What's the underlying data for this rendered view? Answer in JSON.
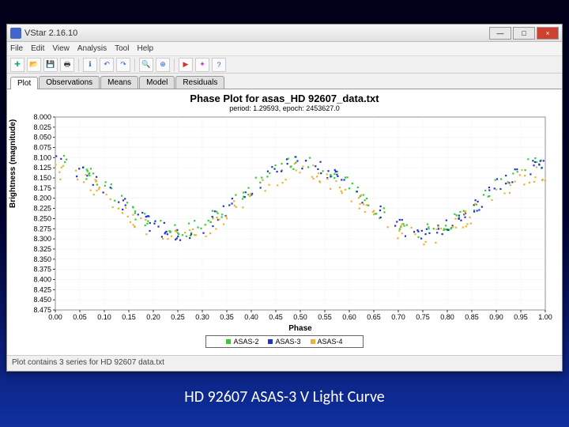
{
  "slide": {
    "caption": "HD 92607 ASAS-3 V Light Curve"
  },
  "window": {
    "title": "VStar 2.16.10",
    "controls": {
      "min": "—",
      "max": "□",
      "close": "×"
    }
  },
  "menubar": [
    "File",
    "Edit",
    "View",
    "Analysis",
    "Tool",
    "Help"
  ],
  "toolbar_icons": [
    {
      "name": "new",
      "glyph": "✚",
      "fg": "#2a8"
    },
    {
      "name": "open",
      "glyph": "📂",
      "fg": "#333"
    },
    {
      "name": "save",
      "glyph": "💾",
      "fg": "#333"
    },
    {
      "name": "print",
      "glyph": "🖶",
      "fg": "#333"
    },
    {
      "name": "info",
      "glyph": "ℹ",
      "fg": "#26c"
    },
    {
      "name": "undo",
      "glyph": "↶",
      "fg": "#26c"
    },
    {
      "name": "redo",
      "glyph": "↷",
      "fg": "#26c"
    },
    {
      "name": "zoom",
      "glyph": "🔍",
      "fg": "#333"
    },
    {
      "name": "target",
      "glyph": "⊕",
      "fg": "#26c"
    },
    {
      "name": "play",
      "glyph": "▶",
      "fg": "#c33"
    },
    {
      "name": "pref",
      "glyph": "✦",
      "fg": "#c3c"
    },
    {
      "name": "help",
      "glyph": "?",
      "fg": "#26c"
    }
  ],
  "tabs": [
    {
      "label": "Plot",
      "active": true
    },
    {
      "label": "Observations",
      "active": false
    },
    {
      "label": "Means",
      "active": false
    },
    {
      "label": "Model",
      "active": false
    },
    {
      "label": "Residuals",
      "active": false
    }
  ],
  "chart": {
    "type": "scatter",
    "title": "Phase Plot for asas_HD 92607_data.txt",
    "subtitle": "period: 1.29593, epoch: 2453627.0",
    "xlabel": "Phase",
    "ylabel": "Brightness (magnitude)",
    "background_color": "#ffffff",
    "grid_color": "#f2f2f2",
    "axis_color": "#000000",
    "tick_font_size": 9,
    "label_font_size": 10,
    "title_font_size": 13,
    "xlim": [
      0.0,
      1.0
    ],
    "ylim": [
      8.475,
      8.0
    ],
    "y_inverted": true,
    "xticks": [
      0.0,
      0.05,
      0.1,
      0.15,
      0.2,
      0.25,
      0.3,
      0.35,
      0.4,
      0.45,
      0.5,
      0.55,
      0.6,
      0.65,
      0.7,
      0.75,
      0.8,
      0.85,
      0.9,
      0.95,
      1.0
    ],
    "yticks": [
      8.0,
      8.025,
      8.05,
      8.075,
      8.1,
      8.125,
      8.15,
      8.175,
      8.2,
      8.225,
      8.25,
      8.275,
      8.3,
      8.325,
      8.35,
      8.375,
      8.4,
      8.425,
      8.45,
      8.475
    ],
    "marker_size": 2.2,
    "series": [
      {
        "name": "ASAS-2",
        "color": "#33cc33",
        "marker": "square",
        "n_points": 140,
        "amplitude": 0.085,
        "mean": 8.195,
        "phase_offset": 0.0,
        "scatter": 0.018
      },
      {
        "name": "ASAS-3",
        "color": "#2233cc",
        "marker": "square",
        "n_points": 140,
        "amplitude": 0.085,
        "mean": 8.2,
        "phase_offset": 0.0,
        "scatter": 0.02
      },
      {
        "name": "ASAS-4",
        "color": "#f0b030",
        "marker": "square",
        "n_points": 140,
        "amplitude": 0.08,
        "mean": 8.215,
        "phase_offset": 0.0,
        "scatter": 0.022
      }
    ],
    "legend": {
      "position": "bottom-center",
      "border_color": "#666666"
    }
  },
  "statusbar": {
    "text": "Plot contains 3 series for HD 92607 data.txt"
  }
}
